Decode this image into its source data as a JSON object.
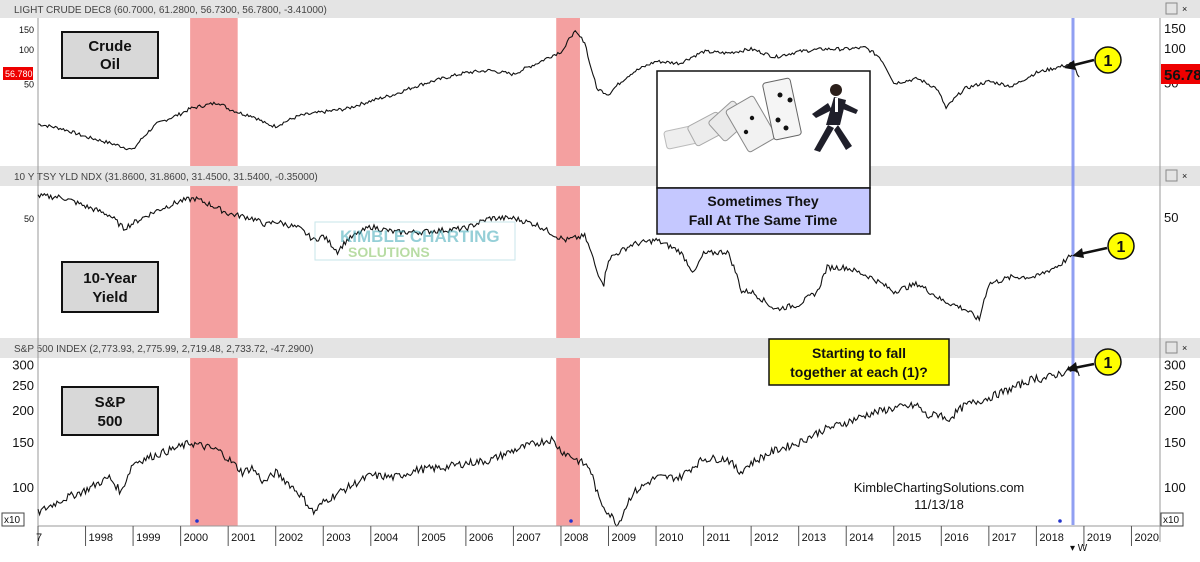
{
  "chart_data": {
    "type": "line",
    "x_ticks": [
      "7",
      "1998",
      "1999",
      "2000",
      "2001",
      "2002",
      "2003",
      "2004",
      "2005",
      "2006",
      "2007",
      "2008",
      "2009",
      "2010",
      "2011",
      "2012",
      "2013",
      "2014",
      "2015",
      "2016",
      "2017",
      "2018",
      "2019",
      "2020"
    ],
    "x_range": [
      1997.0,
      2020.6
    ],
    "shaded_periods": [
      [
        2000.2,
        2001.2
      ],
      [
        2007.9,
        2008.4
      ]
    ],
    "vertical_marker_x": 2018.77,
    "series": [
      {
        "name": "LIGHT CRUDE DEC8",
        "header": "LIGHT CRUDE DEC8 (60.7000, 61.2800, 56.7300, 56.7800, -3.41000)",
        "label_lines": [
          "Crude",
          "Oil"
        ],
        "y_ticks": [
          150,
          100,
          50
        ],
        "last_value": "56.78",
        "last_value_left": "56.780",
        "x": [
          1997.0,
          1997.5,
          1998.0,
          1998.5,
          1999.0,
          1999.5,
          2000.0,
          2000.2,
          2000.5,
          2000.8,
          2001.0,
          2001.3,
          2001.5,
          2001.8,
          2002.0,
          2002.5,
          2003.0,
          2003.5,
          2004.0,
          2004.5,
          2005.0,
          2005.5,
          2006.0,
          2006.5,
          2007.0,
          2007.5,
          2008.0,
          2008.1,
          2008.2,
          2008.3,
          2008.5,
          2008.6,
          2008.75,
          2009.0,
          2009.5,
          2010.0,
          2010.5,
          2011.0,
          2011.5,
          2012.0,
          2012.5,
          2013.0,
          2013.5,
          2014.0,
          2014.4,
          2014.7,
          2015.0,
          2015.5,
          2015.9,
          2016.1,
          2016.5,
          2017.0,
          2017.5,
          2018.0,
          2018.5,
          2018.75,
          2018.9
        ],
        "y": [
          22,
          20,
          17,
          15,
          13,
          22,
          27,
          30,
          32,
          34,
          30,
          27,
          26,
          22,
          21,
          26,
          28,
          30,
          35,
          40,
          48,
          55,
          62,
          65,
          60,
          75,
          95,
          105,
          130,
          140,
          115,
          75,
          45,
          40,
          62,
          78,
          75,
          95,
          92,
          100,
          85,
          95,
          100,
          100,
          103,
          85,
          50,
          55,
          45,
          30,
          45,
          52,
          47,
          62,
          70,
          75,
          56.78
        ]
      },
      {
        "name": "10 Y TSY YLD NDX",
        "header": "10 Y TSY YLD NDX (31.8600, 31.8600, 31.4500, 31.5400, -0.35000)",
        "label_lines": [
          "10-Year",
          "Yield"
        ],
        "y_ticks": [
          50
        ],
        "x": [
          1997.0,
          1997.5,
          1998.0,
          1998.5,
          1998.8,
          1999.0,
          1999.5,
          2000.0,
          2000.3,
          2000.7,
          2001.0,
          2001.5,
          2001.8,
          2002.0,
          2002.5,
          2002.8,
          2003.0,
          2003.3,
          2003.5,
          2004.0,
          2004.5,
          2005.0,
          2005.5,
          2006.0,
          2006.5,
          2007.0,
          2007.5,
          2007.9,
          2008.1,
          2008.5,
          2008.75,
          2008.9,
          2009.0,
          2009.5,
          2010.0,
          2010.5,
          2010.8,
          2011.0,
          2011.5,
          2011.8,
          2012.0,
          2012.5,
          2013.0,
          2013.4,
          2013.6,
          2014.0,
          2014.5,
          2015.0,
          2015.5,
          2016.0,
          2016.5,
          2016.8,
          2017.0,
          2017.5,
          2018.0,
          2018.5,
          2018.75
        ],
        "y": [
          66,
          65,
          58,
          52,
          44,
          47,
          55,
          62,
          64,
          58,
          53,
          50,
          46,
          48,
          44,
          38,
          40,
          33,
          38,
          45,
          42,
          42,
          43,
          44,
          50,
          50,
          46,
          40,
          38,
          40,
          26,
          22,
          30,
          36,
          38,
          33,
          25,
          32,
          33,
          20,
          20,
          16,
          17,
          20,
          27,
          27,
          24,
          20,
          22,
          18,
          16,
          14,
          22,
          24,
          24,
          28,
          31.54
        ]
      },
      {
        "name": "S&P 500 INDEX",
        "header": "S&P 500 INDEX (2,773.93, 2,775.99, 2,719.48, 2,733.72, -47.2900)",
        "label_lines": [
          "S&P",
          "500"
        ],
        "y_ticks": [
          300,
          250,
          200,
          150,
          100
        ],
        "y_range": [
          75,
          310
        ],
        "units_badge": "x10",
        "x": [
          1997.0,
          1997.5,
          1998.0,
          1998.5,
          1998.75,
          1999.0,
          1999.5,
          2000.0,
          2000.2,
          2000.5,
          2000.8,
          2001.0,
          2001.3,
          2001.5,
          2001.75,
          2002.0,
          2002.5,
          2002.8,
          2003.0,
          2003.5,
          2004.0,
          2004.5,
          2005.0,
          2005.5,
          2006.0,
          2006.5,
          2007.0,
          2007.5,
          2007.8,
          2008.0,
          2008.3,
          2008.6,
          2008.8,
          2009.0,
          2009.2,
          2009.5,
          2010.0,
          2010.5,
          2011.0,
          2011.5,
          2011.75,
          2012.0,
          2012.5,
          2013.0,
          2013.5,
          2014.0,
          2014.5,
          2015.0,
          2015.5,
          2015.7,
          2016.0,
          2016.1,
          2016.5,
          2017.0,
          2017.5,
          2018.0,
          2018.1,
          2018.5,
          2018.75,
          2018.85,
          2018.9
        ],
        "y": [
          80,
          90,
          98,
          110,
          96,
          125,
          135,
          145,
          150,
          145,
          140,
          130,
          115,
          120,
          105,
          115,
          95,
          80,
          88,
          100,
          112,
          110,
          118,
          120,
          125,
          128,
          140,
          150,
          155,
          140,
          130,
          120,
          90,
          80,
          72,
          95,
          110,
          110,
          130,
          130,
          115,
          125,
          140,
          150,
          168,
          180,
          195,
          205,
          210,
          190,
          195,
          182,
          210,
          225,
          245,
          270,
          265,
          280,
          290,
          282,
          273.37
        ]
      }
    ],
    "callouts": {
      "marker_number": "1",
      "domino_caption_lines": [
        "Sometimes They",
        "Fall At The Same Time"
      ],
      "question_lines": [
        "Starting to fall",
        "together at each (1)?"
      ]
    },
    "watermark_lines": [
      "KIMBLE CHARTING",
      "SOLUTIONS"
    ],
    "signature_lines": [
      "KimbleChartingSolutions.com",
      "11/13/18"
    ],
    "colors": {
      "shade": "#f4a0a0",
      "marker_line": "#7d8ff0",
      "callout_bg": "#ffff00",
      "caption_bg": "#c5c8ff",
      "label_bg": "#d8d8d8",
      "header_bg": "#e4e4e4",
      "last_value_bg": "#ee0000",
      "watermark": "#3fa9b8"
    }
  }
}
